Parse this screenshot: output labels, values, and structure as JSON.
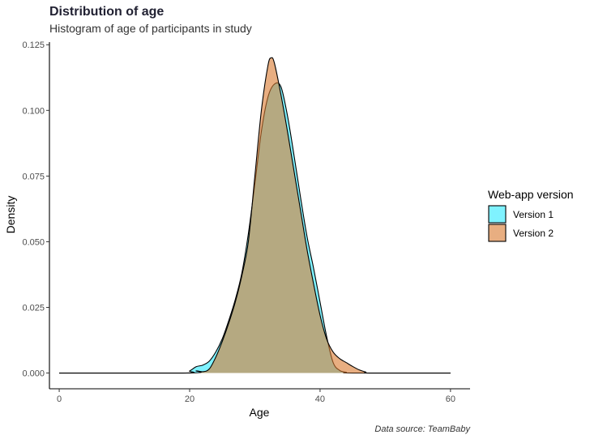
{
  "chart_data": {
    "type": "area",
    "title": "Distribution of age",
    "subtitle": "Histogram of age of participants in study",
    "xlabel": "Age",
    "ylabel": "Density",
    "caption": "Data source: TeamBaby",
    "xlim": [
      -1.5,
      63
    ],
    "ylim": [
      -0.006,
      0.126
    ],
    "x_ticks": [
      0,
      20,
      40,
      60
    ],
    "y_ticks": [
      0.0,
      0.025,
      0.05,
      0.075,
      0.1,
      0.125
    ],
    "y_tick_labels": [
      "0.000",
      "0.025",
      "0.050",
      "0.075",
      "0.100",
      "0.125"
    ],
    "grid": false,
    "legend": {
      "title": "Web-app version",
      "placement": "right"
    },
    "series": [
      {
        "name": "Version 1",
        "color": "#00E5FF",
        "opacity": 0.5,
        "points": [
          [
            0,
            0
          ],
          [
            19,
            0
          ],
          [
            20,
            0.0008
          ],
          [
            21,
            0.0024
          ],
          [
            22,
            0.003
          ],
          [
            23,
            0.0045
          ],
          [
            24,
            0.008
          ],
          [
            25,
            0.013
          ],
          [
            26,
            0.02
          ],
          [
            27,
            0.028
          ],
          [
            28,
            0.038
          ],
          [
            29,
            0.053
          ],
          [
            30,
            0.072
          ],
          [
            31,
            0.092
          ],
          [
            32,
            0.105
          ],
          [
            33,
            0.11
          ],
          [
            34,
            0.109
          ],
          [
            35,
            0.098
          ],
          [
            36,
            0.083
          ],
          [
            37,
            0.067
          ],
          [
            38,
            0.052
          ],
          [
            39,
            0.04
          ],
          [
            40,
            0.027
          ],
          [
            41,
            0.014
          ],
          [
            42,
            0.004
          ],
          [
            43,
            0.001
          ],
          [
            44,
            0.0003
          ],
          [
            45,
            0
          ],
          [
            60,
            0
          ]
        ]
      },
      {
        "name": "Version 2",
        "color": "#D9782D",
        "opacity": 0.6,
        "points": [
          [
            0,
            0
          ],
          [
            20,
            0
          ],
          [
            21,
            0.0008
          ],
          [
            22,
            0.0005
          ],
          [
            23,
            0.0015
          ],
          [
            24,
            0.006
          ],
          [
            25,
            0.012
          ],
          [
            26,
            0.019
          ],
          [
            27,
            0.027
          ],
          [
            28,
            0.037
          ],
          [
            29,
            0.05
          ],
          [
            30,
            0.075
          ],
          [
            31,
            0.1
          ],
          [
            32,
            0.117
          ],
          [
            32.5,
            0.12
          ],
          [
            33,
            0.118
          ],
          [
            34,
            0.106
          ],
          [
            35,
            0.092
          ],
          [
            36,
            0.077
          ],
          [
            37,
            0.062
          ],
          [
            38,
            0.047
          ],
          [
            39,
            0.034
          ],
          [
            40,
            0.022
          ],
          [
            41,
            0.013
          ],
          [
            42,
            0.008
          ],
          [
            43,
            0.0055
          ],
          [
            44,
            0.004
          ],
          [
            45,
            0.0025
          ],
          [
            46,
            0.0012
          ],
          [
            47,
            0.0004
          ],
          [
            48,
            0
          ],
          [
            60,
            0
          ]
        ]
      }
    ]
  }
}
